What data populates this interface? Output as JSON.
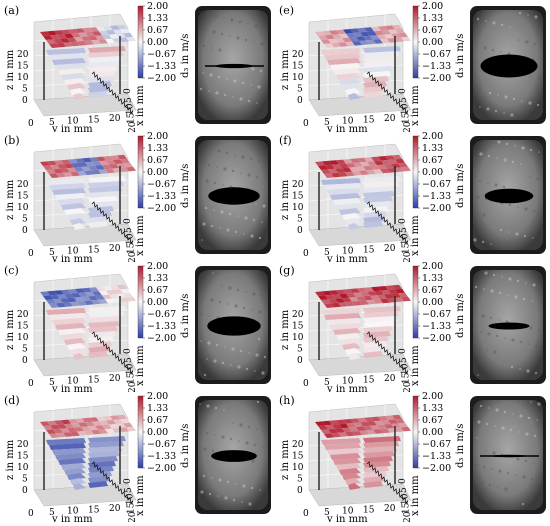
{
  "figure": {
    "panels": [
      {
        "label": "(a)",
        "col": 0,
        "row": 0,
        "opening": 0.08,
        "pattern": "top-red-center"
      },
      {
        "label": "(b)",
        "col": 0,
        "row": 1,
        "opening": 0.55,
        "pattern": "top-mixed"
      },
      {
        "label": "(c)",
        "col": 0,
        "row": 2,
        "opening": 0.62,
        "pattern": "top-blue"
      },
      {
        "label": "(d)",
        "col": 0,
        "row": 3,
        "opening": 0.35,
        "pattern": "top-red-bottom-blue"
      },
      {
        "label": "(e)",
        "col": 1,
        "row": 0,
        "opening": 0.75,
        "pattern": "top-blue-center"
      },
      {
        "label": "(f)",
        "col": 1,
        "row": 1,
        "opening": 0.45,
        "pattern": "top-red"
      },
      {
        "label": "(g)",
        "col": 1,
        "row": 2,
        "opening": 0.18,
        "pattern": "top-red-strong"
      },
      {
        "label": "(h)",
        "col": 1,
        "row": 3,
        "opening": 0.02,
        "pattern": "top-red-band"
      }
    ],
    "axes": {
      "y_label": "y in mm",
      "z_label": "z in mm",
      "x_label": "x in mm",
      "y_ticks": [
        "0",
        "5",
        "10",
        "15",
        "20"
      ],
      "z_ticks": [
        "0",
        "5",
        "10",
        "15",
        "20"
      ],
      "x_ticks": [
        "0",
        "5",
        "10",
        "15",
        "20"
      ]
    },
    "colorbar": {
      "label": "d₃ in m/s",
      "ticks": [
        "2.00",
        "1.33",
        "0.67",
        "0.00",
        "−0.67",
        "−1.33",
        "−2.00"
      ],
      "colors": {
        "max": "#b2182b",
        "mid": "#f7f7f7",
        "min": "#2c3fa5"
      }
    }
  }
}
